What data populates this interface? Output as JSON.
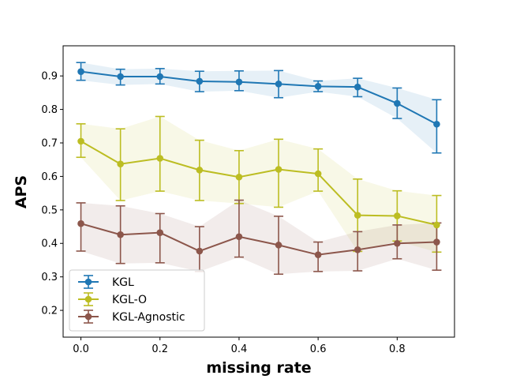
{
  "chart_data": {
    "type": "line",
    "xlabel": "missing rate",
    "ylabel": "APS",
    "xlim": [
      -0.045,
      0.945
    ],
    "ylim": [
      0.12,
      0.99
    ],
    "x": [
      0.0,
      0.1,
      0.2,
      0.3,
      0.4,
      0.5,
      0.6,
      0.7,
      0.8,
      0.9
    ],
    "x_ticks": [
      "0.0",
      "0.2",
      "0.4",
      "0.6",
      "0.8"
    ],
    "x_tick_values": [
      0.0,
      0.2,
      0.4,
      0.6,
      0.8
    ],
    "y_ticks": [
      "0.2",
      "0.3",
      "0.4",
      "0.5",
      "0.6",
      "0.7",
      "0.8",
      "0.9"
    ],
    "y_tick_values": [
      0.2,
      0.3,
      0.4,
      0.5,
      0.6,
      0.7,
      0.8,
      0.9
    ],
    "grid": false,
    "legend_position": "lower-left",
    "series": [
      {
        "name": "KGL",
        "color": "#1f77b4",
        "values": [
          0.913,
          0.898,
          0.898,
          0.884,
          0.882,
          0.876,
          0.869,
          0.867,
          0.818,
          0.756
        ],
        "err_low": [
          0.887,
          0.873,
          0.876,
          0.853,
          0.856,
          0.835,
          0.853,
          0.838,
          0.773,
          0.67
        ],
        "err_high": [
          0.94,
          0.92,
          0.922,
          0.914,
          0.915,
          0.916,
          0.885,
          0.893,
          0.864,
          0.829
        ],
        "band_low": [
          0.887,
          0.873,
          0.876,
          0.853,
          0.856,
          0.835,
          0.853,
          0.838,
          0.773,
          0.67
        ],
        "band_high": [
          0.94,
          0.92,
          0.922,
          0.914,
          0.915,
          0.916,
          0.885,
          0.893,
          0.864,
          0.829
        ]
      },
      {
        "name": "KGL-O",
        "color": "#bcbd22",
        "values": [
          0.705,
          0.637,
          0.654,
          0.619,
          0.598,
          0.621,
          0.608,
          0.484,
          0.482,
          0.455
        ],
        "err_low": [
          0.657,
          0.528,
          0.556,
          0.528,
          0.519,
          0.508,
          0.556,
          0.376,
          0.407,
          0.374
        ],
        "err_high": [
          0.757,
          0.742,
          0.779,
          0.708,
          0.677,
          0.711,
          0.682,
          0.592,
          0.557,
          0.543
        ],
        "band_low": [
          0.657,
          0.528,
          0.556,
          0.528,
          0.519,
          0.508,
          0.556,
          0.376,
          0.407,
          0.374
        ],
        "band_high": [
          0.757,
          0.742,
          0.779,
          0.708,
          0.677,
          0.711,
          0.682,
          0.592,
          0.557,
          0.543
        ]
      },
      {
        "name": "KGL-Agnostic",
        "color": "#8c564b",
        "values": [
          0.459,
          0.426,
          0.432,
          0.377,
          0.42,
          0.395,
          0.366,
          0.381,
          0.4,
          0.404
        ],
        "err_low": [
          0.377,
          0.34,
          0.342,
          0.316,
          0.359,
          0.308,
          0.316,
          0.318,
          0.354,
          0.32
        ],
        "err_high": [
          0.521,
          0.512,
          0.489,
          0.45,
          0.529,
          0.481,
          0.404,
          0.435,
          0.455,
          0.461
        ],
        "band_low": [
          0.377,
          0.34,
          0.342,
          0.316,
          0.359,
          0.308,
          0.316,
          0.318,
          0.354,
          0.32
        ],
        "band_high": [
          0.521,
          0.512,
          0.489,
          0.45,
          0.529,
          0.481,
          0.404,
          0.435,
          0.455,
          0.461
        ]
      }
    ]
  }
}
